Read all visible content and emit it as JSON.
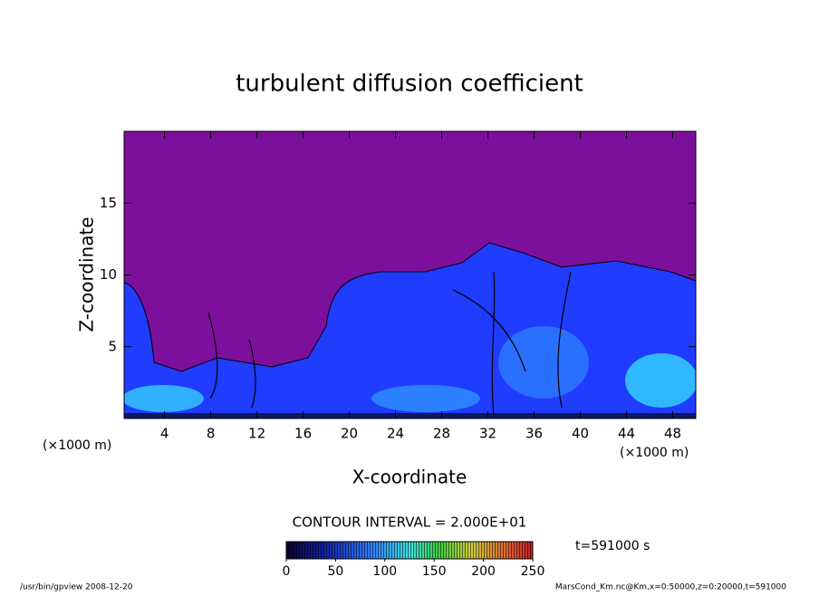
{
  "chart_data": {
    "type": "contour",
    "title": "turbulent diffusion coefficient",
    "xlabel": "X-coordinate",
    "ylabel": "Z-coordinate",
    "x_unit": "(×1000 m)",
    "y_unit": "(×1000 m)",
    "xlim": [
      0.5,
      50
    ],
    "xticks": [
      4,
      8,
      12,
      16,
      20,
      24,
      28,
      32,
      36,
      40,
      44,
      48
    ],
    "ylim": [
      0,
      20
    ],
    "yticks": [
      5,
      10,
      15
    ],
    "contour_interval": "CONTOUR INTERVAL = 2.000E+01",
    "time_label": "t=591000 s",
    "colorbar": {
      "lim": [
        0,
        250
      ],
      "ticks": [
        0,
        50,
        100,
        150,
        200,
        250
      ]
    },
    "footer_left": "/usr/bin/gpview  2008-12-20",
    "footer_right": "MarsCond_Km.nc@Km,x=0:50000,z=0:20000,t=591000"
  }
}
